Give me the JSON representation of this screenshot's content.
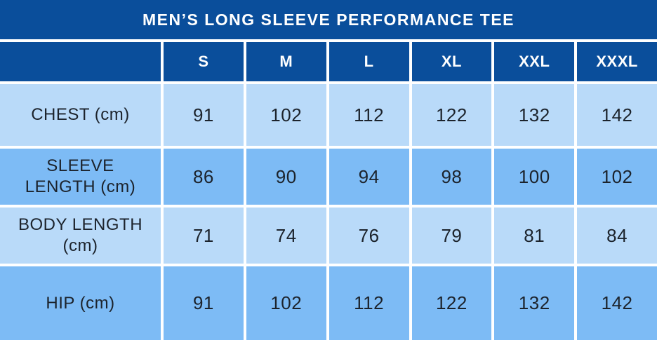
{
  "title": "MEN’S LONG SLEEVE PERFORMANCE TEE",
  "chart_data": {
    "type": "table",
    "title": "MEN’S LONG SLEEVE PERFORMANCE TEE",
    "columns": [
      "S",
      "M",
      "L",
      "XL",
      "XXL",
      "XXXL"
    ],
    "rows": [
      {
        "label": "CHEST (cm)",
        "values": [
          91,
          102,
          112,
          122,
          132,
          142
        ]
      },
      {
        "label": "SLEEVE LENGTH (cm)",
        "values": [
          86,
          90,
          94,
          98,
          100,
          102
        ]
      },
      {
        "label": "BODY LENGTH (cm)",
        "values": [
          71,
          74,
          76,
          79,
          81,
          84
        ]
      },
      {
        "label": "HIP (cm)",
        "values": [
          91,
          102,
          112,
          122,
          132,
          142
        ]
      }
    ],
    "layout": {
      "grid": "on",
      "row_striping": [
        "light",
        "medium",
        "light",
        "medium"
      ]
    }
  },
  "colors": {
    "header_bg": "#0a4e9b",
    "header_text": "#ffffff",
    "row_light_bg": "#b9daf9",
    "row_medium_bg": "#7dbbf5",
    "grid_line": "#ffffff",
    "body_text": "#1c232c"
  }
}
